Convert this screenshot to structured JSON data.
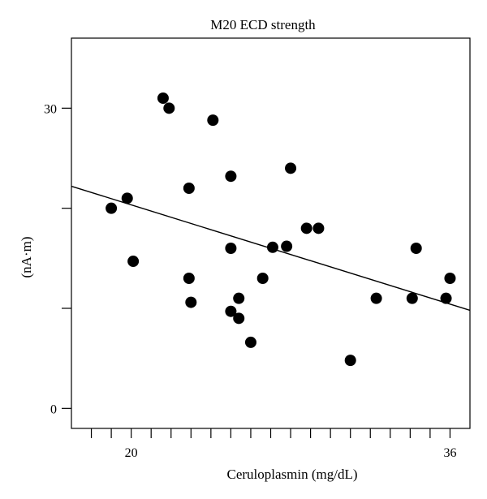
{
  "chart_data": {
    "type": "scatter",
    "title": "M20 ECD strength",
    "xlabel": "Ceruloplasmin (mg/dL)",
    "ylabel": "(nA·m)",
    "xlim": [
      17,
      37
    ],
    "ylim": [
      -2,
      37
    ],
    "x_ticks": [
      18,
      19,
      20,
      21,
      22,
      23,
      24,
      25,
      26,
      27,
      28,
      29,
      30,
      31,
      32,
      33,
      34,
      35,
      36
    ],
    "x_tick_labels": [
      {
        "value": 20,
        "label": "20"
      },
      {
        "value": 36,
        "label": "36"
      }
    ],
    "y_ticks": [
      0,
      10,
      20,
      30
    ],
    "y_tick_labels": [
      {
        "value": 0,
        "label": "0"
      },
      {
        "value": 30,
        "label": "30"
      }
    ],
    "grid": false,
    "points": [
      {
        "x": 19.0,
        "y": 20.0
      },
      {
        "x": 19.8,
        "y": 21.0
      },
      {
        "x": 20.1,
        "y": 14.7
      },
      {
        "x": 21.6,
        "y": 31.0
      },
      {
        "x": 21.9,
        "y": 30.0
      },
      {
        "x": 22.9,
        "y": 22.0
      },
      {
        "x": 22.9,
        "y": 13.0
      },
      {
        "x": 23.0,
        "y": 10.6
      },
      {
        "x": 24.1,
        "y": 28.8
      },
      {
        "x": 25.0,
        "y": 23.2
      },
      {
        "x": 25.0,
        "y": 16.0
      },
      {
        "x": 25.0,
        "y": 9.7
      },
      {
        "x": 25.4,
        "y": 11.0
      },
      {
        "x": 25.4,
        "y": 9.0
      },
      {
        "x": 26.0,
        "y": 6.6
      },
      {
        "x": 26.6,
        "y": 13.0
      },
      {
        "x": 27.1,
        "y": 16.1
      },
      {
        "x": 27.8,
        "y": 16.2
      },
      {
        "x": 28.0,
        "y": 24.0
      },
      {
        "x": 28.8,
        "y": 18.0
      },
      {
        "x": 29.4,
        "y": 18.0
      },
      {
        "x": 31.0,
        "y": 4.8
      },
      {
        "x": 32.3,
        "y": 11.0
      },
      {
        "x": 34.1,
        "y": 11.0
      },
      {
        "x": 34.3,
        "y": 16.0
      },
      {
        "x": 35.8,
        "y": 11.0
      },
      {
        "x": 36.0,
        "y": 13.0
      }
    ],
    "fit_line": {
      "x": [
        17,
        37
      ],
      "y": [
        22.2,
        9.8
      ]
    }
  }
}
